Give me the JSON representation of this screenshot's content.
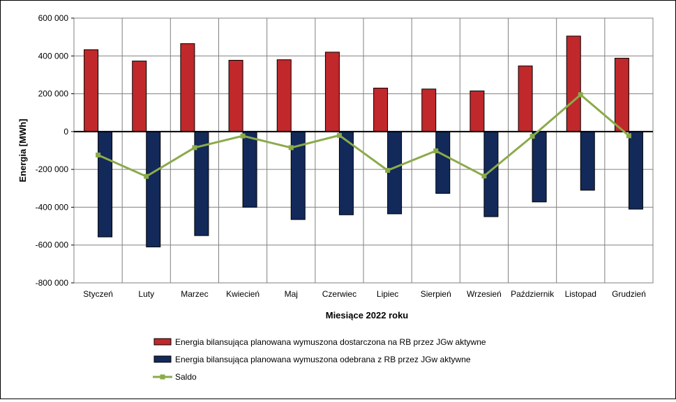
{
  "chart_data": {
    "type": "bar",
    "xlabel": "Miesiące 2022  roku",
    "ylabel": "Energia [MWh]",
    "ylim": [
      -800000,
      600000
    ],
    "ytick_step": 200000,
    "yticks": [
      "600 000",
      "400 000",
      "200 000",
      "0",
      "-200 000",
      "-400 000",
      "-600 000",
      "-800 000"
    ],
    "grid": true,
    "legend_position": "bottom",
    "categories": [
      "Styczeń",
      "Luty",
      "Marzec",
      "Kwiecień",
      "Maj",
      "Czerwiec",
      "Lipiec",
      "Sierpień",
      "Wrzesień",
      "Październik",
      "Listopad",
      "Grudzień"
    ],
    "series": [
      {
        "name": "Energia bilansująca planowana wymuszona dostarczona na RB przez JGw aktywne",
        "kind": "bar",
        "color": "#C0282B",
        "values": [
          433000,
          373000,
          465000,
          377000,
          380000,
          420000,
          230000,
          225000,
          215000,
          347000,
          505000,
          388000
        ]
      },
      {
        "name": "Energia bilansująca planowana wymuszona odebrana z RB przez JGw aktywne",
        "kind": "bar",
        "color": "#12295A",
        "values": [
          -557000,
          -610000,
          -550000,
          -400000,
          -465000,
          -440000,
          -435000,
          -327000,
          -450000,
          -372000,
          -310000,
          -410000
        ]
      },
      {
        "name": "Saldo",
        "kind": "line",
        "color": "#8BAA4A",
        "values": [
          -124000,
          -237000,
          -85000,
          -23000,
          -85000,
          -20000,
          -205000,
          -102000,
          -235000,
          -25000,
          195000,
          -22000
        ]
      }
    ]
  }
}
